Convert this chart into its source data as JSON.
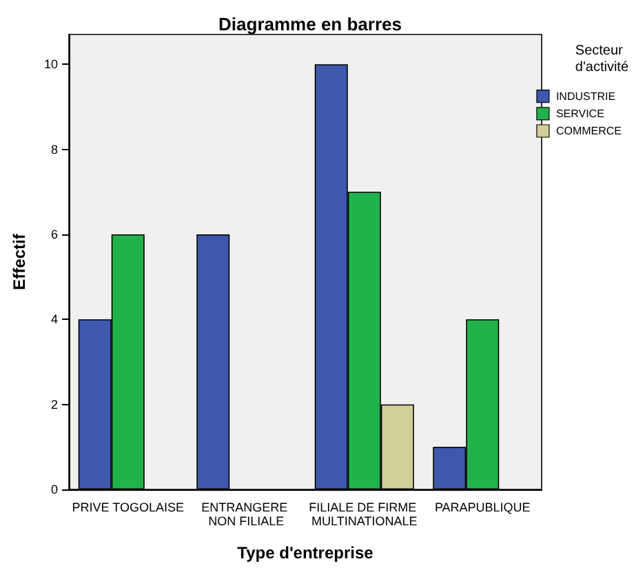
{
  "chart_data": {
    "type": "bar",
    "title": "Diagramme en barres",
    "xlabel": "Type d'entreprise",
    "ylabel": "Effectif",
    "legend_title": "Secteur d'activité",
    "categories": [
      "PRIVE TOGOLAISE",
      "ENTRANGERE NON FILIALE",
      "FILIALE DE FIRME MULTINATIONALE",
      "PARAPUBLIQUE"
    ],
    "series": [
      {
        "name": "INDUSTRIE",
        "color": "#3e58ac",
        "values": [
          4,
          6,
          10,
          1
        ]
      },
      {
        "name": "SERVICE",
        "color": "#22b24c",
        "values": [
          6,
          null,
          7,
          4
        ]
      },
      {
        "name": "COMMERCE",
        "color": "#d3ce97",
        "values": [
          null,
          null,
          2,
          null
        ]
      }
    ],
    "ylim": [
      0,
      10.7
    ],
    "yticks": [
      0,
      2,
      4,
      6,
      8,
      10
    ],
    "legend": "top right",
    "grid": false
  }
}
